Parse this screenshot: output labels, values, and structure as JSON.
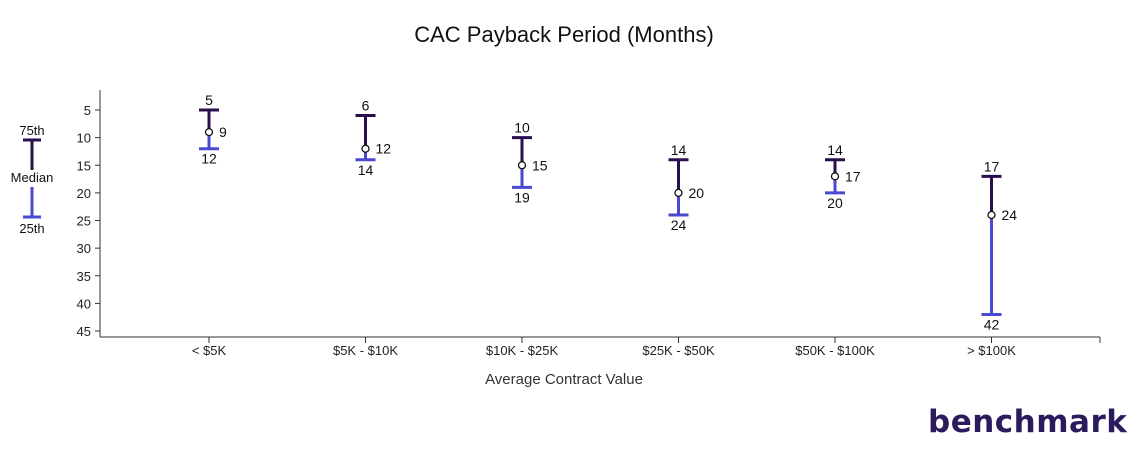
{
  "chart_data": {
    "type": "range",
    "title": "CAC Payback Period (Months)",
    "xlabel": "Average Contract Value",
    "ylabel": "",
    "ylim": [
      2,
      46
    ],
    "y_inverted": true,
    "yticks": [
      5,
      10,
      15,
      20,
      25,
      30,
      35,
      40,
      45
    ],
    "categories": [
      "< $5K",
      "$5K - $10K",
      "$10K - $25K",
      "$25K - $50K",
      "$50K - $100K",
      "> $100K"
    ],
    "series": [
      {
        "name": "75th",
        "values": [
          5,
          6,
          10,
          14,
          14,
          17
        ]
      },
      {
        "name": "Median",
        "values": [
          9,
          12,
          15,
          20,
          17,
          24
        ]
      },
      {
        "name": "25th",
        "values": [
          12,
          14,
          19,
          24,
          20,
          42
        ]
      }
    ],
    "colors": {
      "upper": "#2a0f4f",
      "lower": "#4a4ad0",
      "axis": "#333333"
    },
    "legend": {
      "placement": "left",
      "top": "75th",
      "middle": "Median",
      "bottom": "25th"
    }
  },
  "branding": {
    "logo_main": "benchmark",
    "logo_accent": "it"
  }
}
